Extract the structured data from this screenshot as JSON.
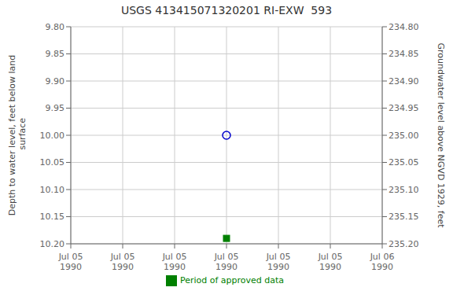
{
  "chart_data": {
    "type": "scatter",
    "title": "USGS 413415071320201 RI-EXW  593",
    "ylabel": "Depth to water level, feet below land\n surface",
    "y2label": "Groundwater level above NGVD 1929, feet",
    "categories": [
      "Jul 05\n1990",
      "Jul 05\n1990",
      "Jul 05\n1990",
      "Jul 05\n1990",
      "Jul 05\n1990",
      "Jul 05\n1990",
      "Jul 06\n1990"
    ],
    "series": [
      {
        "color": "#0000cc",
        "marker": "circle_open",
        "values": [
          null,
          null,
          null,
          10.0,
          null,
          null,
          null
        ]
      },
      {
        "name": "Period of approved data",
        "color": "#008000",
        "marker": "square",
        "values": [
          null,
          null,
          null,
          10.19,
          null,
          null,
          null
        ]
      }
    ],
    "ylim": [
      10.2,
      9.8
    ],
    "yticks": [
      {
        "value": 9.8,
        "label": "9.80"
      },
      9.85,
      {
        "value": 9.9,
        "label": "9.90"
      },
      9.95,
      {
        "value": 10.0,
        "label": "10.00"
      },
      10.05,
      {
        "value": 10.1,
        "label": "10.10"
      },
      10.15,
      {
        "value": 10.2,
        "label": "10.20"
      }
    ],
    "y2lim": [
      235.2,
      234.8
    ],
    "y2ticks": [
      {
        "value": 234.8,
        "label": "234.80"
      },
      234.85,
      {
        "value": 234.9,
        "label": "234.90"
      },
      234.95,
      {
        "value": 235.0,
        "label": "235.00"
      },
      235.05,
      {
        "value": 235.1,
        "label": "235.10"
      },
      235.15,
      {
        "value": 235.2,
        "label": "235.20"
      }
    ],
    "grid": true,
    "legend": "bottom"
  }
}
